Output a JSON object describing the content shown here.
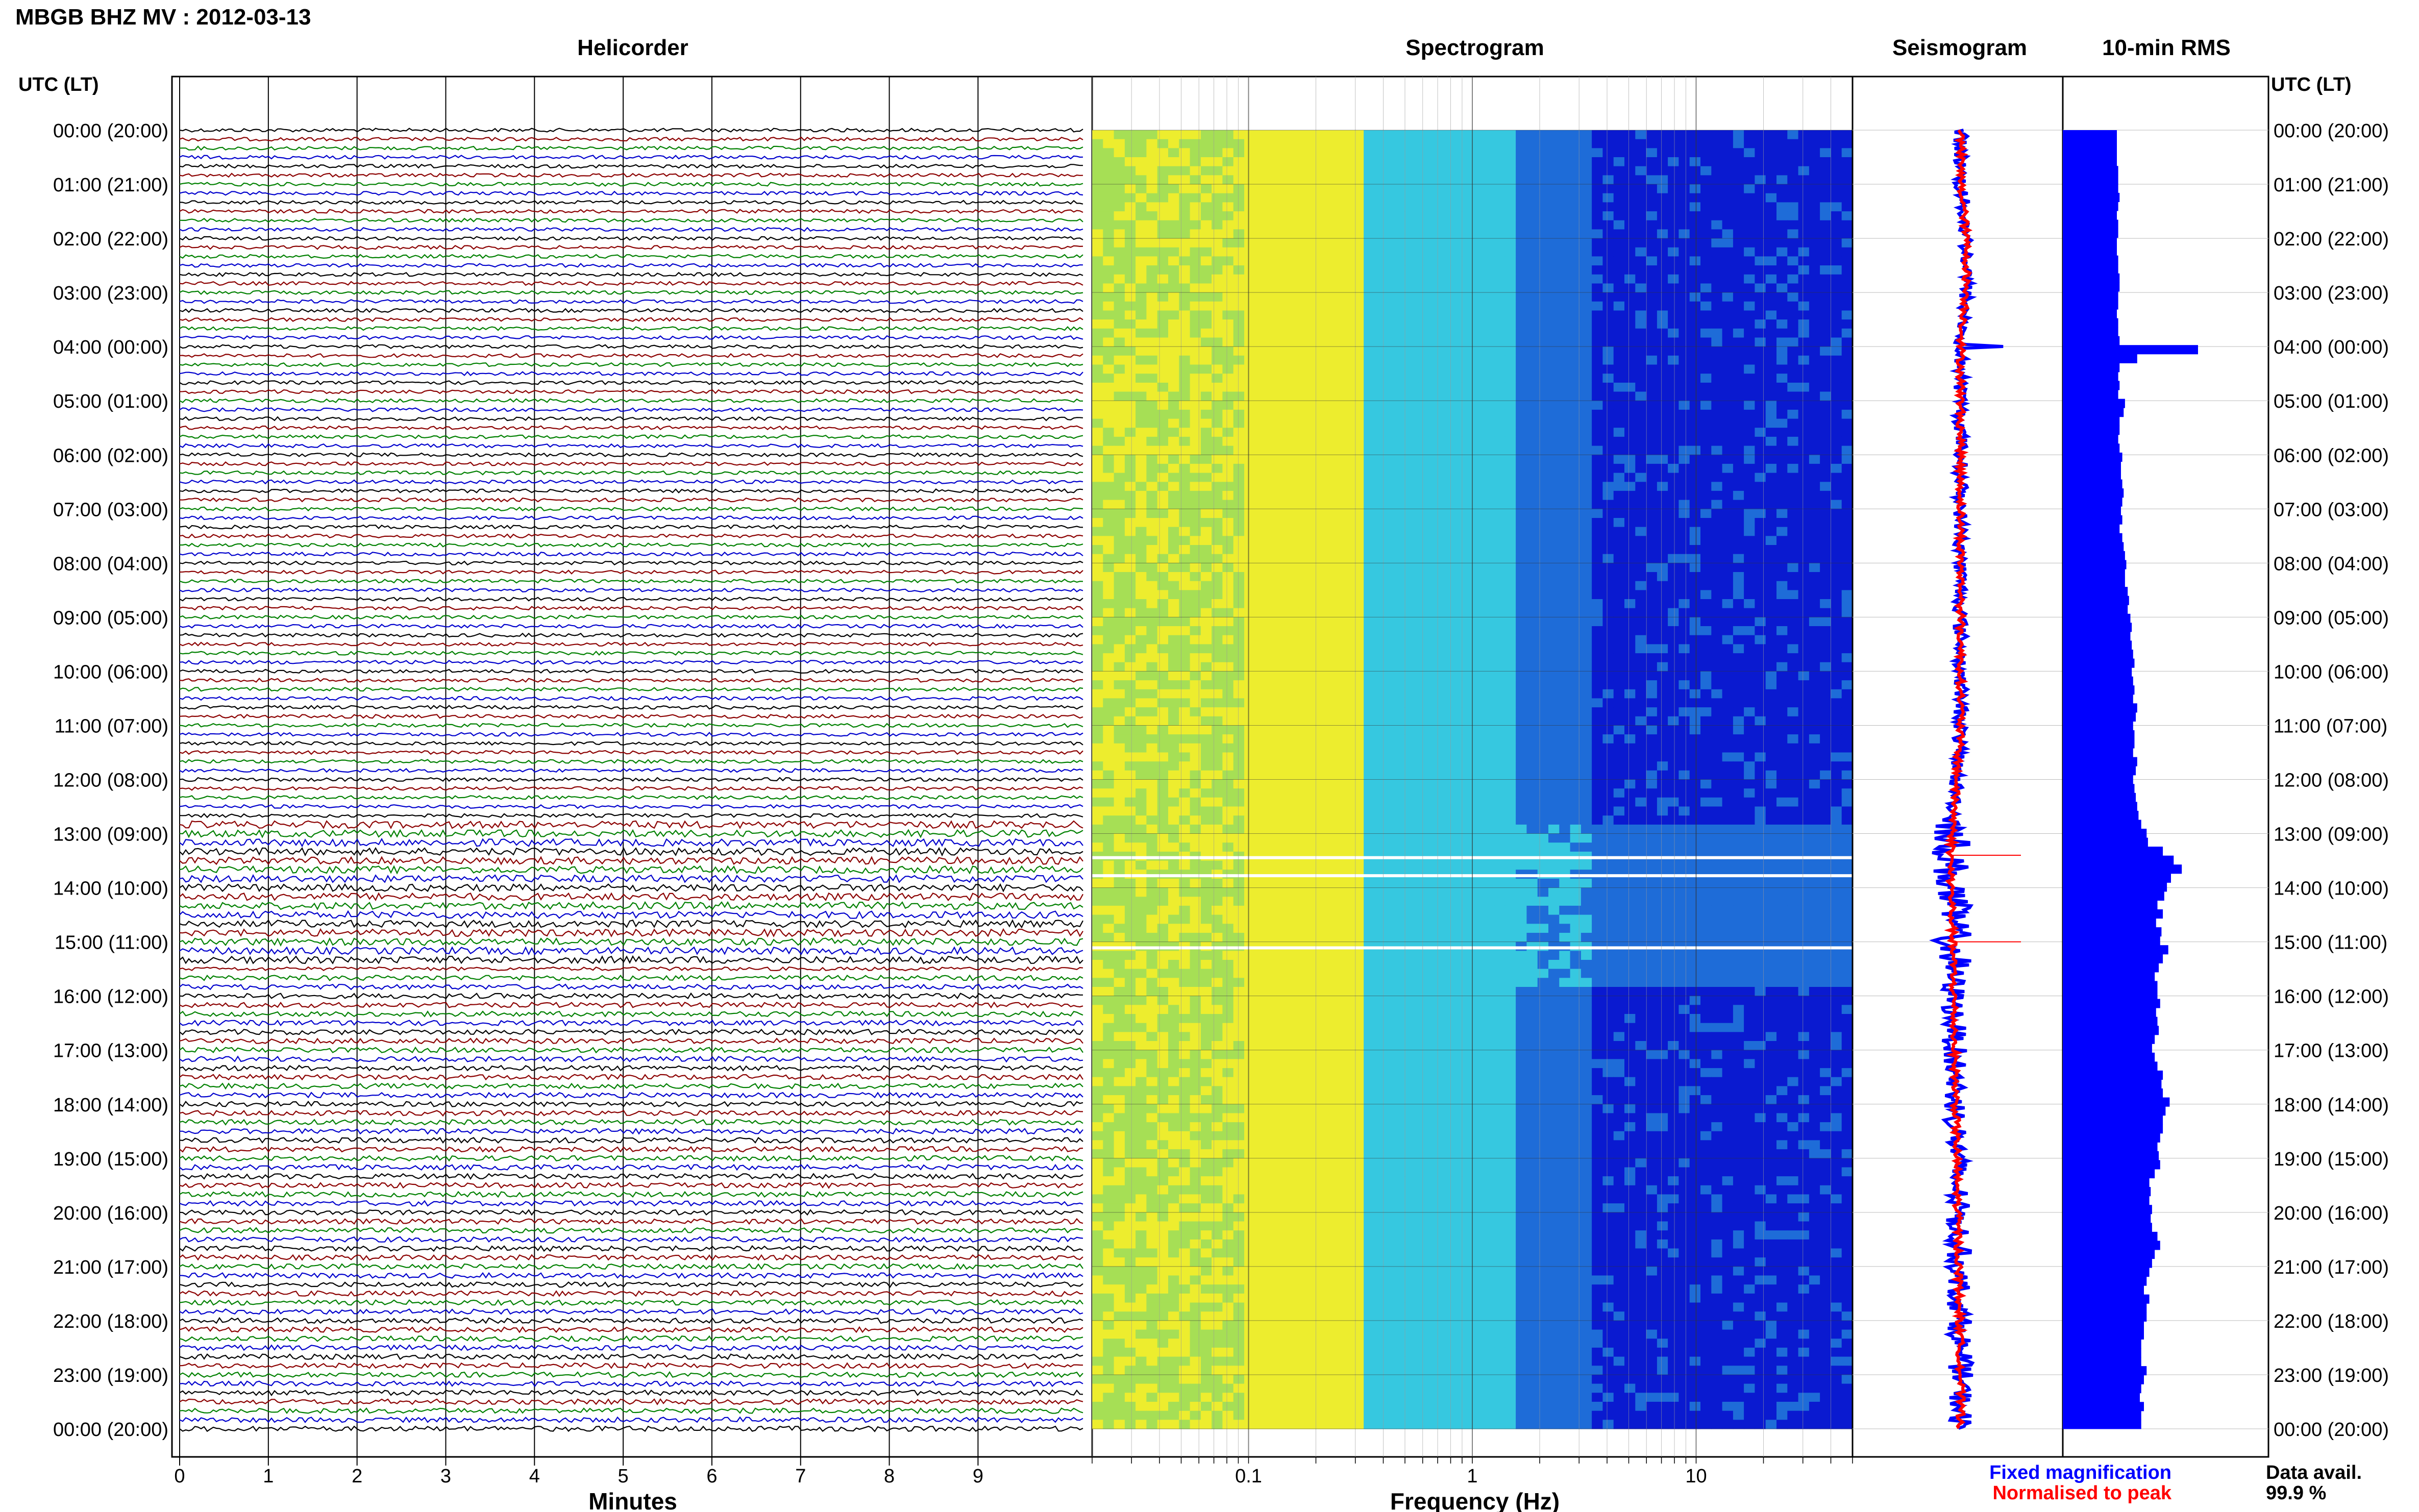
{
  "header": {
    "station_title": "MBGB BHZ MV : 2012-03-13",
    "utc_label_left": "UTC (LT)",
    "utc_label_right": "UTC (LT)"
  },
  "panels": {
    "helicorder_title": "Helicorder",
    "spectrogram_title": "Spectrogram",
    "seismogram_title": "Seismogram",
    "rms_title": "10-min RMS"
  },
  "footer": {
    "minutes_label": "Minutes",
    "frequency_label": "Frequency (Hz)",
    "legend_fixed": "Fixed magnification",
    "legend_normalised": "Normalised to peak",
    "data_avail_label": "Data avail.",
    "data_avail_value": "99.9 %"
  },
  "colors": {
    "helicorder_traces": [
      "#000000",
      "#8b0000",
      "#008000",
      "#0000cd"
    ],
    "seismogram_fixed": "#0000ff",
    "seismogram_normalised": "#ff0000",
    "rms_bars": "#0000ff",
    "legend_fixed": "#0000ff",
    "legend_normalised": "#ff0000"
  },
  "chart_data": {
    "type": "heatmap",
    "time_labels": [
      "00:00 (20:00)",
      "01:00 (21:00)",
      "02:00 (22:00)",
      "03:00 (23:00)",
      "04:00 (00:00)",
      "05:00 (01:00)",
      "06:00 (02:00)",
      "07:00 (03:00)",
      "08:00 (04:00)",
      "09:00 (05:00)",
      "10:00 (06:00)",
      "11:00 (07:00)",
      "12:00 (08:00)",
      "13:00 (09:00)",
      "14:00 (10:00)",
      "15:00 (11:00)",
      "16:00 (12:00)",
      "17:00 (13:00)",
      "18:00 (14:00)",
      "19:00 (15:00)",
      "20:00 (16:00)",
      "21:00 (17:00)",
      "22:00 (18:00)",
      "23:00 (19:00)",
      "00:00 (20:00)"
    ],
    "helicorder": {
      "xlabel": "Minutes",
      "xlim": [
        0,
        10
      ],
      "xticks": [
        "0",
        "1",
        "2",
        "3",
        "4",
        "5",
        "6",
        "7",
        "8",
        "9"
      ],
      "lines_per_hour": 6
    },
    "spectrogram": {
      "xlabel": "Frequency (Hz)",
      "xscale": "log",
      "xlim": [
        0.02,
        50
      ],
      "xticks": [
        "0.1",
        "1",
        "10"
      ],
      "colormap": [
        "#a6df55",
        "#eded2e",
        "#36c8e0",
        "#1e6cd8",
        "#0a1ad0"
      ]
    },
    "seismogram": {
      "series": [
        {
          "name": "Fixed magnification",
          "color": "#0000ff"
        },
        {
          "name": "Normalised to peak",
          "color": "#ff0000"
        }
      ]
    },
    "rms_10min": {
      "relative_values": [
        0.4,
        0.4,
        0.4,
        0.4,
        0.41,
        0.41,
        0.41,
        0.42,
        0.41,
        0.4,
        0.41,
        0.41,
        0.4,
        0.4,
        0.41,
        0.41,
        0.42,
        0.42,
        0.41,
        0.41,
        0.4,
        0.41,
        0.41,
        0.42,
        1.0,
        0.55,
        0.42,
        0.41,
        0.42,
        0.41,
        0.46,
        0.45,
        0.42,
        0.42,
        0.41,
        0.42,
        0.44,
        0.43,
        0.43,
        0.44,
        0.45,
        0.44,
        0.43,
        0.44,
        0.42,
        0.44,
        0.45,
        0.46,
        0.47,
        0.46,
        0.46,
        0.48,
        0.49,
        0.48,
        0.5,
        0.51,
        0.5,
        0.51,
        0.52,
        0.53,
        0.51,
        0.52,
        0.53,
        0.52,
        0.55,
        0.54,
        0.52,
        0.53,
        0.53,
        0.52,
        0.55,
        0.54,
        0.52,
        0.53,
        0.54,
        0.55,
        0.56,
        0.58,
        0.62,
        0.63,
        0.74,
        0.82,
        0.88,
        0.8,
        0.77,
        0.75,
        0.7,
        0.74,
        0.69,
        0.73,
        0.72,
        0.78,
        0.74,
        0.71,
        0.68,
        0.7,
        0.7,
        0.72,
        0.69,
        0.7,
        0.71,
        0.68,
        0.66,
        0.68,
        0.7,
        0.74,
        0.73,
        0.74,
        0.79,
        0.76,
        0.74,
        0.74,
        0.72,
        0.7,
        0.71,
        0.72,
        0.68,
        0.64,
        0.65,
        0.64,
        0.66,
        0.65,
        0.66,
        0.7,
        0.72,
        0.68,
        0.66,
        0.64,
        0.62,
        0.6,
        0.64,
        0.62,
        0.62,
        0.6,
        0.6,
        0.58,
        0.58,
        0.58,
        0.62,
        0.6,
        0.58,
        0.57,
        0.6,
        0.58,
        0.58
      ]
    }
  }
}
